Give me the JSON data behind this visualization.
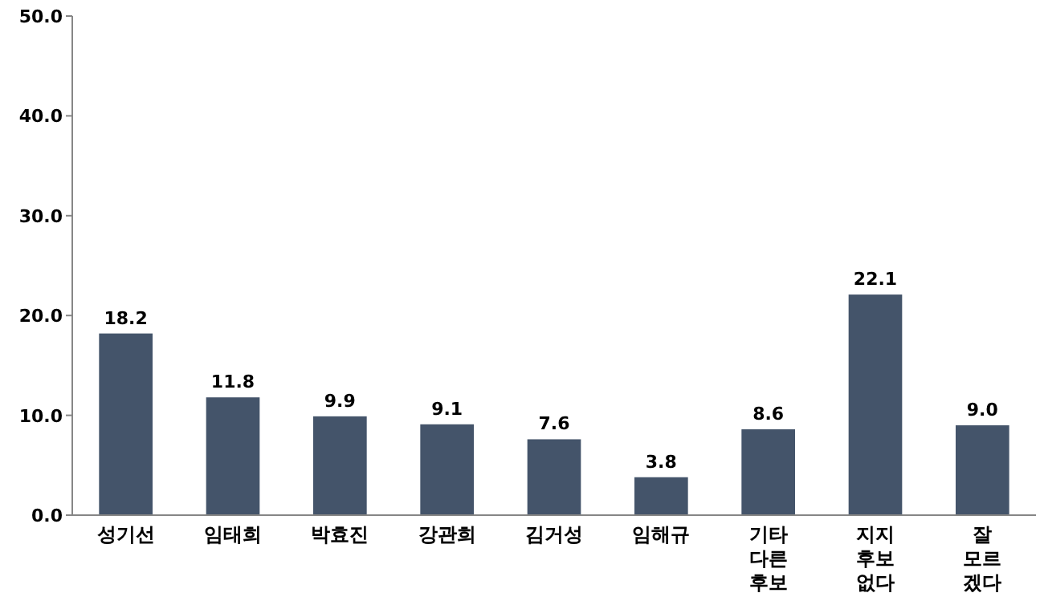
{
  "chart_data": {
    "type": "bar",
    "categories": [
      "성기선",
      "임태희",
      "박효진",
      "강관희",
      "김거성",
      "임해규",
      "기타\n다른\n후보",
      "지지\n후보\n없다",
      "잘\n모르\n겠다"
    ],
    "values": [
      18.2,
      11.8,
      9.9,
      9.1,
      7.6,
      3.8,
      8.6,
      22.1,
      9.0
    ],
    "value_labels": [
      "18.2",
      "11.8",
      "9.9",
      "9.1",
      "7.6",
      "3.8",
      "8.6",
      "22.1",
      "9.0"
    ],
    "color": "#44546a",
    "ylim": [
      0,
      50
    ],
    "yticks": [
      {
        "value": 0,
        "label": "0.0"
      },
      {
        "value": 10,
        "label": "10.0"
      },
      {
        "value": 20,
        "label": "20.0"
      },
      {
        "value": 30,
        "label": "30.0"
      },
      {
        "value": 40,
        "label": "40.0"
      },
      {
        "value": 50,
        "label": "50.0"
      }
    ],
    "grid": false
  }
}
